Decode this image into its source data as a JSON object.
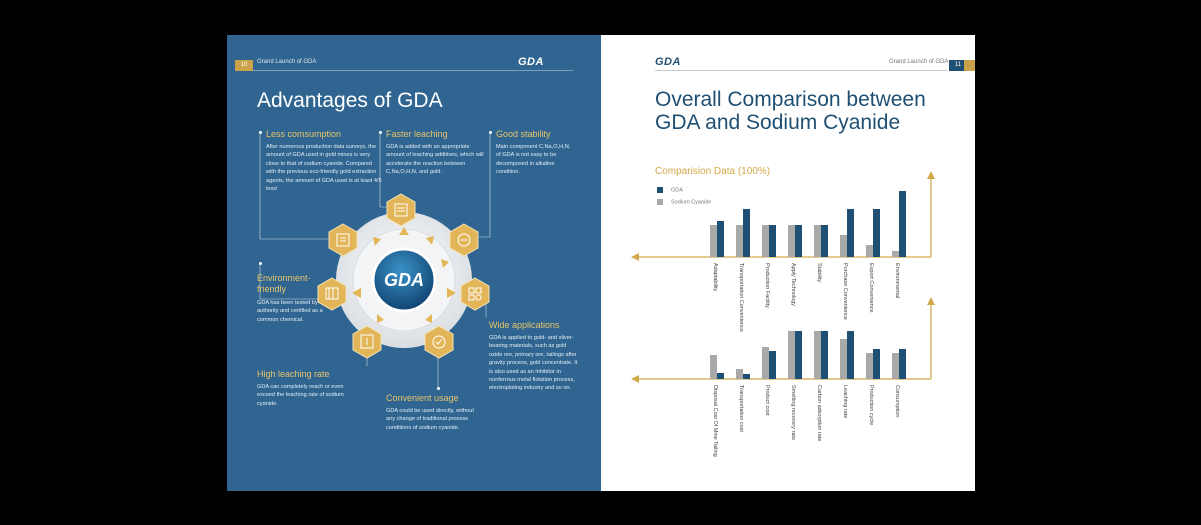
{
  "left_page": {
    "page_number": "10",
    "running_head": "Grand Launch of GDA",
    "logo": "GDA",
    "title": "Advantages of GDA",
    "hub_label": "GDA",
    "features": [
      {
        "heading": "Less comsumption",
        "body": "After numerous production data surveys, the amount of GDA used in gold mines is very close to that of sodium cyanide. Compared with the previous eco-friendly gold extraction agents, the amount of GDA used is at least 4/5 less!"
      },
      {
        "heading": "Faster leaching",
        "body": "GDA is added with an appropriate amount of leaching additives, which will accelerate the reaction between C,Na,O,H,N, and gold."
      },
      {
        "heading": "Good stability",
        "body": "Main component C,Na,O,H,N, of GDA is not easy to be decomposed in alkaline condition."
      },
      {
        "heading": "Environment-friendly",
        "body": "GDA has been tested by the authority and certified as a common chemical."
      },
      {
        "heading": "Wide applications",
        "body": "GDA is applied to gold- and silver-bearing materials, such as gold oxide ore, primary ore, tailings after gravity process, gold concentrate. It is also used as an inhibitor in nonferrous metal flotation process, electroplating industry and so on."
      },
      {
        "heading": "High leaching rate",
        "body": "GDA can completely reach or even exceed the leaching rate of sodium cyanide."
      },
      {
        "heading": "Convenient usage",
        "body": "GDA could be used directly, without any change of traditional process conditions of sodium cyanide."
      }
    ]
  },
  "right_page": {
    "page_number": "11",
    "running_head": "Grand Launch of GDA",
    "logo": "GDA",
    "title": "Overall Comparison between GDA and Sodium Cyanide",
    "subtitle": "Comparision Data (100%)"
  },
  "colors": {
    "navy": "#1f4f73",
    "gray_bar": "#a9a9a9",
    "gold": "#d3a848",
    "blue_page": "#2f6590"
  },
  "chart_data": [
    {
      "type": "bar",
      "orientation": "above-axis",
      "categories": [
        "Adaptability",
        "Transportation Convenience",
        "Production Facility",
        "Apply Technology",
        "Stability",
        "Purchase Convenience",
        "Export Convenience",
        "Environmental"
      ],
      "series": [
        {
          "name": "GDA",
          "values": [
            36,
            48,
            32,
            32,
            32,
            48,
            48,
            66
          ]
        },
        {
          "name": "Sodium Cyanide",
          "values": [
            32,
            32,
            32,
            32,
            32,
            22,
            12,
            6
          ]
        }
      ],
      "legend": "top-left",
      "grid": false
    },
    {
      "type": "bar",
      "orientation": "above-axis",
      "categories": [
        "Disposal Cost Of Mine Tailing",
        "Transportation cost",
        "Product cost",
        "Smelting recovery rate",
        "Carbon adsorption rate",
        "Leaching rate",
        "Production cycle",
        "Consumption"
      ],
      "series": [
        {
          "name": "GDA",
          "values": [
            6,
            5,
            28,
            48,
            48,
            48,
            30,
            30
          ]
        },
        {
          "name": "Sodium Cyanide",
          "values": [
            24,
            10,
            32,
            48,
            48,
            40,
            26,
            26
          ]
        }
      ],
      "grid": false
    }
  ]
}
